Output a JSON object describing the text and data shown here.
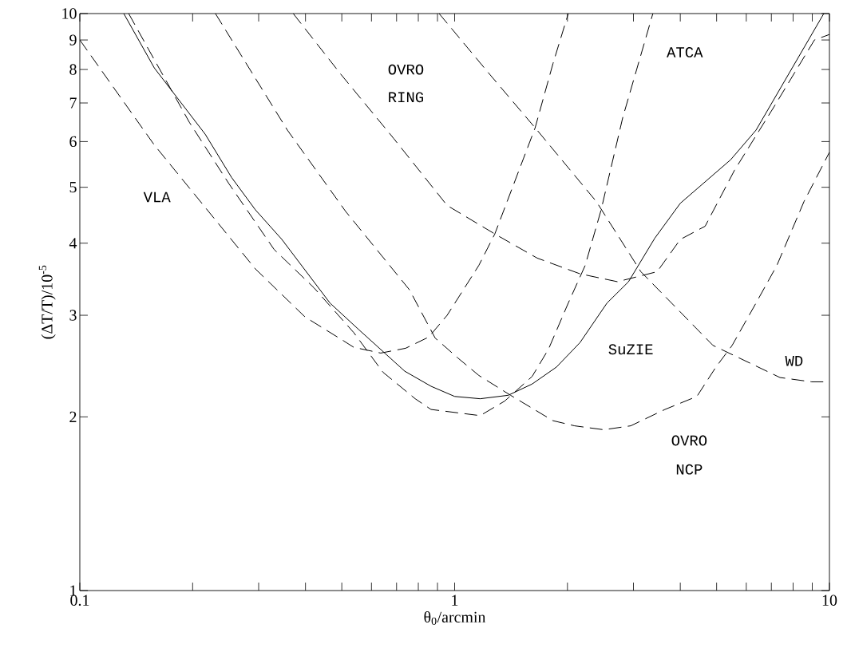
{
  "chart_data": {
    "type": "line",
    "xlabel": "θ$_{0}$/arcmin",
    "ylabel": "(ΔT/T)/10$^{-5}$",
    "log": "xy",
    "xlim": [
      0.1,
      10
    ],
    "ylim": [
      1,
      10
    ],
    "xticks": [
      0.1,
      {
        "value": 0.2,
        "label": null
      },
      {
        "value": 0.3,
        "label": null
      },
      {
        "value": 0.4,
        "label": null
      },
      {
        "value": 0.5,
        "label": null
      },
      {
        "value": 0.6,
        "label": null
      },
      {
        "value": 0.7,
        "label": null
      },
      {
        "value": 0.8,
        "label": null
      },
      {
        "value": 0.9,
        "label": null
      },
      1,
      {
        "value": 2,
        "label": null
      },
      {
        "value": 3,
        "label": null
      },
      {
        "value": 4,
        "label": null
      },
      {
        "value": 5,
        "label": null
      },
      {
        "value": 6,
        "label": null
      },
      {
        "value": 7,
        "label": null
      },
      {
        "value": 8,
        "label": null
      },
      {
        "value": 9,
        "label": null
      },
      10
    ],
    "yticks": [
      1,
      2,
      3,
      4,
      5,
      6,
      7,
      8,
      9,
      10
    ],
    "series": [
      {
        "color": "#000000",
        "line_style": "dashed",
        "x": [
          0.1,
          0.158,
          0.294,
          0.399,
          0.505,
          0.538,
          0.635,
          0.74,
          0.853,
          0.955,
          1.16,
          1.28,
          1.64,
          1.83,
          2.01
        ],
        "values": [
          9.0,
          5.92,
          3.61,
          2.98,
          2.71,
          2.64,
          2.58,
          2.63,
          2.75,
          3.0,
          3.66,
          4.15,
          6.34,
          8.19,
          10
        ]
      },
      {
        "color": "#000000",
        "line_style": "solid",
        "x": [
          0.131,
          0.158,
          0.216,
          0.254,
          0.294,
          0.346,
          0.465,
          0.556,
          0.736,
          0.865,
          1.0,
          1.17,
          1.39,
          1.61,
          1.87,
          2.16,
          2.55,
          2.91,
          3.42,
          4.0,
          5.45,
          6.37,
          9.66
        ],
        "values": [
          10,
          8.05,
          6.18,
          5.2,
          4.57,
          4.06,
          3.15,
          2.83,
          2.4,
          2.26,
          2.17,
          2.15,
          2.18,
          2.28,
          2.44,
          2.69,
          3.15,
          3.43,
          4.08,
          4.69,
          5.58,
          6.28,
          10
        ]
      },
      {
        "color": "#000000",
        "line_style": "dashed",
        "x": [
          0.135,
          0.153,
          0.196,
          0.25,
          0.33,
          0.421,
          0.538,
          0.644,
          0.785,
          0.865,
          1.17,
          1.36,
          1.61,
          1.78,
          2.01,
          2.23,
          2.46,
          2.81,
          3.38
        ],
        "values": [
          10,
          8.64,
          6.48,
          5.07,
          3.9,
          3.35,
          2.8,
          2.39,
          2.15,
          2.06,
          2.01,
          2.13,
          2.35,
          2.62,
          3.15,
          3.66,
          4.57,
          6.61,
          10
        ]
      },
      {
        "color": "#000000",
        "line_style": "dashed",
        "x": [
          0.23,
          0.358,
          0.512,
          0.758,
          0.887,
          1.02,
          1.16,
          1.41,
          1.83,
          2.09,
          2.5,
          2.95,
          3.64,
          4.43,
          4.98,
          5.5,
          6.37,
          7.24,
          8.55,
          10
        ],
        "values": [
          10,
          6.28,
          4.54,
          3.32,
          2.74,
          2.53,
          2.36,
          2.18,
          1.97,
          1.93,
          1.9,
          1.93,
          2.06,
          2.17,
          2.44,
          2.66,
          3.15,
          3.66,
          4.72,
          5.75
        ]
      },
      {
        "color": "#000000",
        "line_style": "dashed",
        "x": [
          0.371,
          0.497,
          0.687,
          0.955,
          1.28,
          1.66,
          2.16,
          2.72,
          3.47,
          4.0,
          4.66,
          5.58,
          7.13,
          9.12,
          10
        ],
        "values": [
          10,
          7.85,
          6.08,
          4.65,
          4.15,
          3.77,
          3.54,
          3.43,
          3.57,
          4.06,
          4.28,
          5.35,
          6.91,
          9.0,
          9.2
        ]
      },
      {
        "color": "#000000",
        "line_style": "dashed",
        "x": [
          0.909,
          1.24,
          1.66,
          2.39,
          3.14,
          4.89,
          6.37,
          7.38,
          8.97,
          10
        ],
        "values": [
          10,
          7.85,
          6.28,
          4.72,
          3.57,
          2.66,
          2.45,
          2.34,
          2.3,
          2.3
        ]
      }
    ],
    "annotations": [
      "OVRO",
      "RING",
      "ATCA",
      "VLA",
      "SuZIE",
      "WD",
      "OVRO",
      "NCP"
    ]
  }
}
